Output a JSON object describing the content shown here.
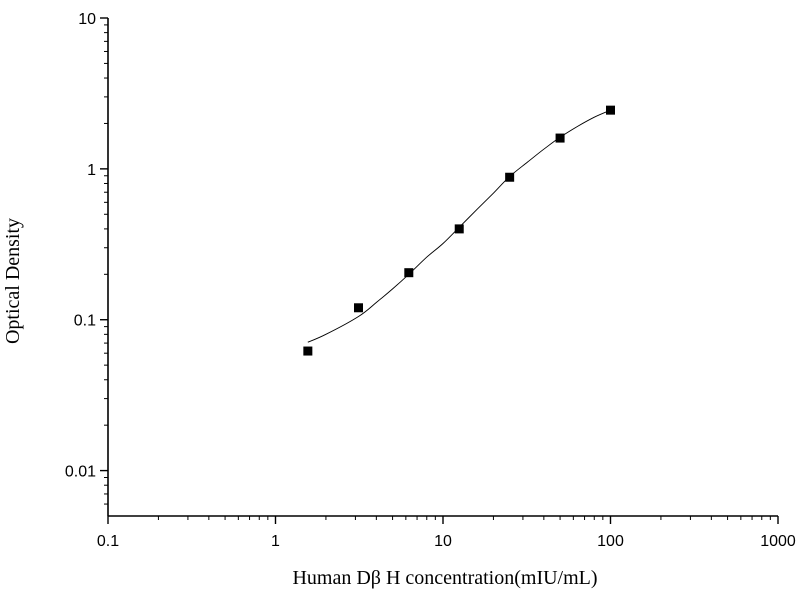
{
  "chart_data": {
    "type": "scatter",
    "title": "",
    "xlabel": "Human Dβ  H concentration(mIU/mL)",
    "ylabel": "Optical Density",
    "x_scale": "log",
    "y_scale": "log",
    "xlim": [
      0.1,
      1000
    ],
    "ylim": [
      0.005,
      10
    ],
    "x_ticks": [
      0.1,
      1,
      10,
      100,
      1000
    ],
    "x_tick_labels": [
      "0.1",
      "1",
      "10",
      "100",
      "1000"
    ],
    "y_ticks": [
      0.01,
      0.1,
      1,
      10
    ],
    "y_tick_labels": [
      "0.01",
      "0.1",
      "1",
      "10"
    ],
    "grid": false,
    "legend": "none",
    "series": [
      {
        "kind": "points",
        "marker": "square",
        "color": "#000000",
        "x": [
          1.56,
          3.13,
          6.25,
          12.5,
          25,
          50,
          100
        ],
        "y": [
          0.062,
          0.12,
          0.205,
          0.4,
          0.88,
          1.6,
          2.45
        ]
      },
      {
        "kind": "fitted-curve",
        "color": "#000000",
        "x": [
          1.56,
          2,
          3.13,
          4,
          5,
          6.25,
          8,
          10,
          12.5,
          16,
          20,
          25,
          32,
          40,
          50,
          64,
          80,
          100
        ],
        "y": [
          0.071,
          0.08,
          0.105,
          0.13,
          0.16,
          0.2,
          0.26,
          0.32,
          0.41,
          0.54,
          0.69,
          0.89,
          1.11,
          1.35,
          1.62,
          1.92,
          2.2,
          2.45
        ]
      }
    ]
  }
}
